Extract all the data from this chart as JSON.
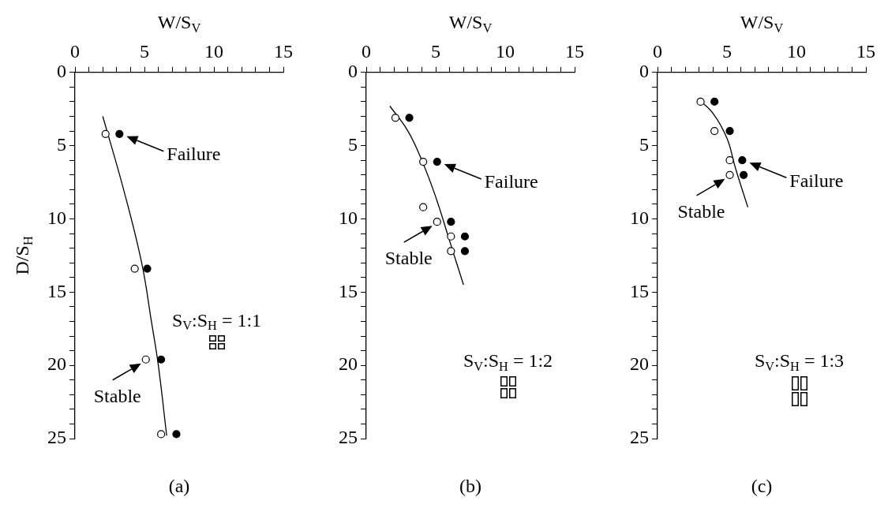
{
  "chart_data": [
    {
      "type": "scatter",
      "xlabel": "W/S$_{V}$",
      "ylabel": "D/S$_{H}$",
      "xlim": [
        0,
        15
      ],
      "ylim": [
        25,
        0
      ],
      "grid": false,
      "xticks": [
        0,
        {
          "value": 1,
          "label": null
        },
        {
          "value": 2,
          "label": null
        },
        {
          "value": 3,
          "label": null
        },
        {
          "value": 4,
          "label": null
        },
        5,
        {
          "value": 6,
          "label": null
        },
        {
          "value": 7,
          "label": null
        },
        {
          "value": 8,
          "label": null
        },
        {
          "value": 9,
          "label": null
        },
        10,
        {
          "value": 11,
          "label": null
        },
        {
          "value": 12,
          "label": null
        },
        {
          "value": 13,
          "label": null
        },
        {
          "value": 14,
          "label": null
        },
        15
      ],
      "yticks": [
        0,
        {
          "value": 1,
          "label": null
        },
        {
          "value": 2,
          "label": null
        },
        {
          "value": 3,
          "label": null
        },
        {
          "value": 4,
          "label": null
        },
        5,
        {
          "value": 6,
          "label": null
        },
        {
          "value": 7,
          "label": null
        },
        {
          "value": 8,
          "label": null
        },
        {
          "value": 9,
          "label": null
        },
        10,
        {
          "value": 11,
          "label": null
        },
        {
          "value": 12,
          "label": null
        },
        {
          "value": 13,
          "label": null
        },
        {
          "value": 14,
          "label": null
        },
        15,
        {
          "value": 16,
          "label": null
        },
        {
          "value": 17,
          "label": null
        },
        {
          "value": 18,
          "label": null
        },
        {
          "value": 19,
          "label": null
        },
        20,
        {
          "value": 21,
          "label": null
        },
        {
          "value": 22,
          "label": null
        },
        {
          "value": 23,
          "label": null
        },
        {
          "value": 24,
          "label": null
        },
        25
      ],
      "series": [
        {
          "type": "scatter",
          "marker": "circle",
          "color": "#ffffff",
          "x": [
            2.2,
            4.3,
            5.1,
            6.2
          ],
          "values": [
            4.2,
            13.4,
            19.6,
            24.7
          ]
        },
        {
          "type": "scatter",
          "marker": "circle",
          "color": "#000000",
          "x": [
            3.2,
            5.2,
            6.2,
            7.3
          ],
          "values": [
            4.2,
            13.4,
            19.6,
            24.7
          ]
        },
        {
          "type": "line",
          "marker": "none",
          "color": "#000000",
          "x": [
            2,
            3.5,
            4.8,
            5.5,
            6,
            6.6
          ],
          "values": [
            3,
            8,
            13,
            17,
            20,
            24.8
          ]
        }
      ],
      "annotations": [
        {
          "text": "Failure",
          "x": 3.2,
          "y": 4.2
        },
        {
          "text": "Stable",
          "x": 5.1,
          "y": 19.6
        },
        "S$_{V}$:S$_{H}$ = 1:1",
        "(a)"
      ]
    },
    {
      "type": "scatter",
      "xlabel": "W/S$_{V}$",
      "xlim": [
        0,
        15
      ],
      "ylim": [
        25,
        0
      ],
      "grid": false,
      "xticks": [
        0,
        {
          "value": 1,
          "label": null
        },
        {
          "value": 2,
          "label": null
        },
        {
          "value": 3,
          "label": null
        },
        {
          "value": 4,
          "label": null
        },
        5,
        {
          "value": 6,
          "label": null
        },
        {
          "value": 7,
          "label": null
        },
        {
          "value": 8,
          "label": null
        },
        {
          "value": 9,
          "label": null
        },
        10,
        {
          "value": 11,
          "label": null
        },
        {
          "value": 12,
          "label": null
        },
        {
          "value": 13,
          "label": null
        },
        {
          "value": 14,
          "label": null
        },
        15
      ],
      "yticks": [
        0,
        {
          "value": 1,
          "label": null
        },
        {
          "value": 2,
          "label": null
        },
        {
          "value": 3,
          "label": null
        },
        {
          "value": 4,
          "label": null
        },
        5,
        {
          "value": 6,
          "label": null
        },
        {
          "value": 7,
          "label": null
        },
        {
          "value": 8,
          "label": null
        },
        {
          "value": 9,
          "label": null
        },
        10,
        {
          "value": 11,
          "label": null
        },
        {
          "value": 12,
          "label": null
        },
        {
          "value": 13,
          "label": null
        },
        {
          "value": 14,
          "label": null
        },
        15,
        {
          "value": 16,
          "label": null
        },
        {
          "value": 17,
          "label": null
        },
        {
          "value": 18,
          "label": null
        },
        {
          "value": 19,
          "label": null
        },
        20,
        {
          "value": 21,
          "label": null
        },
        {
          "value": 22,
          "label": null
        },
        {
          "value": 23,
          "label": null
        },
        {
          "value": 24,
          "label": null
        },
        25
      ],
      "series": [
        {
          "type": "scatter",
          "marker": "circle",
          "color": "#ffffff",
          "x": [
            2.1,
            4.1,
            4.1,
            5.1,
            6.1,
            6.1
          ],
          "values": [
            3.1,
            6.1,
            9.2,
            10.2,
            11.2,
            12.2
          ]
        },
        {
          "type": "scatter",
          "marker": "circle",
          "color": "#000000",
          "x": [
            3.1,
            5.1,
            6.1,
            7.1,
            7.1
          ],
          "values": [
            3.1,
            6.1,
            10.2,
            11.2,
            12.2
          ]
        },
        {
          "type": "line",
          "marker": "none",
          "color": "#000000",
          "x": [
            1.7,
            3,
            4,
            5,
            6,
            7
          ],
          "values": [
            2.3,
            4,
            6,
            8.5,
            11.5,
            14.5
          ]
        }
      ],
      "annotations": [
        {
          "text": "Failure",
          "x": 5.1,
          "y": 6.1
        },
        {
          "text": "Stable",
          "x": 5.1,
          "y": 10.2
        },
        "S$_{V}$:S$_{H}$ = 1:2",
        "(b)"
      ]
    },
    {
      "type": "scatter",
      "xlabel": "W/S$_{V}$",
      "xlim": [
        0,
        15
      ],
      "ylim": [
        25,
        0
      ],
      "grid": false,
      "xticks": [
        0,
        {
          "value": 1,
          "label": null
        },
        {
          "value": 2,
          "label": null
        },
        {
          "value": 3,
          "label": null
        },
        {
          "value": 4,
          "label": null
        },
        5,
        {
          "value": 6,
          "label": null
        },
        {
          "value": 7,
          "label": null
        },
        {
          "value": 8,
          "label": null
        },
        {
          "value": 9,
          "label": null
        },
        10,
        {
          "value": 11,
          "label": null
        },
        {
          "value": 12,
          "label": null
        },
        {
          "value": 13,
          "label": null
        },
        {
          "value": 14,
          "label": null
        },
        15
      ],
      "yticks": [
        0,
        {
          "value": 1,
          "label": null
        },
        {
          "value": 2,
          "label": null
        },
        {
          "value": 3,
          "label": null
        },
        {
          "value": 4,
          "label": null
        },
        5,
        {
          "value": 6,
          "label": null
        },
        {
          "value": 7,
          "label": null
        },
        {
          "value": 8,
          "label": null
        },
        {
          "value": 9,
          "label": null
        },
        10,
        {
          "value": 11,
          "label": null
        },
        {
          "value": 12,
          "label": null
        },
        {
          "value": 13,
          "label": null
        },
        {
          "value": 14,
          "label": null
        },
        15,
        {
          "value": 16,
          "label": null
        },
        {
          "value": 17,
          "label": null
        },
        {
          "value": 18,
          "label": null
        },
        {
          "value": 19,
          "label": null
        },
        20,
        {
          "value": 21,
          "label": null
        },
        {
          "value": 22,
          "label": null
        },
        {
          "value": 23,
          "label": null
        },
        {
          "value": 24,
          "label": null
        },
        25
      ],
      "series": [
        {
          "type": "scatter",
          "marker": "circle",
          "color": "#ffffff",
          "x": [
            3.1,
            4.1,
            5.2,
            5.2
          ],
          "values": [
            2,
            4,
            6,
            7
          ]
        },
        {
          "type": "scatter",
          "marker": "circle",
          "color": "#000000",
          "x": [
            4.1,
            5.2,
            6.1,
            6.2
          ],
          "values": [
            2,
            4,
            6,
            7
          ]
        },
        {
          "type": "line",
          "marker": "none",
          "color": "#000000",
          "x": [
            2.9,
            4,
            5,
            5.6,
            6.5
          ],
          "values": [
            1.8,
            2.8,
            4.5,
            6.5,
            9.2
          ]
        }
      ],
      "annotations": [
        {
          "text": "Failure",
          "x": 6.1,
          "y": 6
        },
        {
          "text": "Stable",
          "x": 5.2,
          "y": 7
        },
        "S$_{V}$:S$_{H}$ = 1:3",
        "(c)"
      ]
    }
  ]
}
